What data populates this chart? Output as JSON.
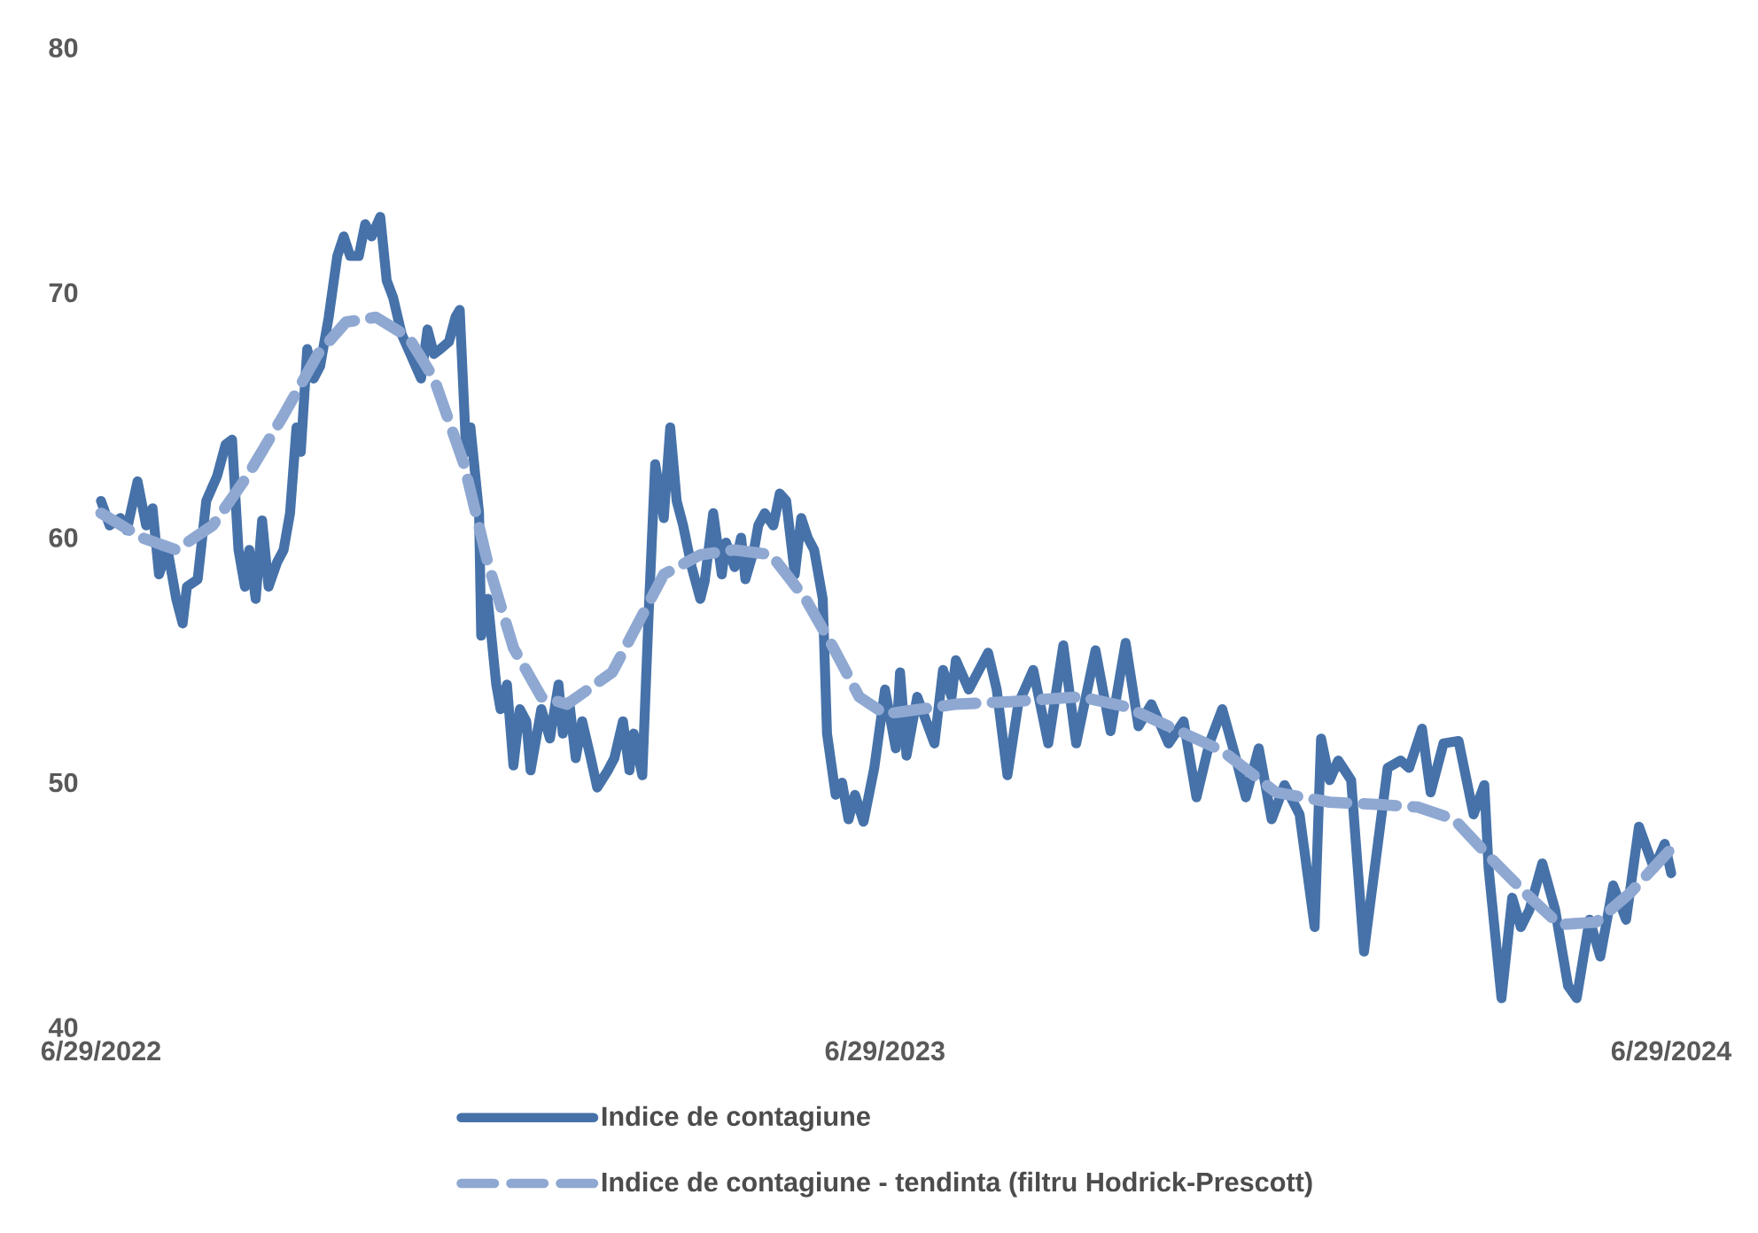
{
  "chart_data": {
    "type": "line",
    "xlim": [
      "2022-06-29",
      "2024-06-29"
    ],
    "ylim": [
      40,
      80
    ],
    "xticks": [
      {
        "value": "2022-06-29",
        "label": "6/29/2022"
      },
      {
        "value": "2023-06-29",
        "label": "6/29/2023"
      },
      {
        "value": "2024-06-29",
        "label": "6/29/2024"
      }
    ],
    "yticks": [
      40,
      50,
      60,
      70,
      80
    ],
    "grid": false,
    "legend": "bottom",
    "marker": "none",
    "series": [
      {
        "name": "Indice de contagiune",
        "color": "#4672a9",
        "line_style": "solid",
        "x": [
          "2022-06-29",
          "2022-07-03",
          "2022-07-08",
          "2022-07-11",
          "2022-07-16",
          "2022-07-20",
          "2022-07-23",
          "2022-07-26",
          "2022-07-30",
          "2022-08-03",
          "2022-08-06",
          "2022-08-08",
          "2022-08-13",
          "2022-08-17",
          "2022-08-22",
          "2022-08-26",
          "2022-08-29",
          "2022-09-01",
          "2022-09-04",
          "2022-09-06",
          "2022-09-09",
          "2022-09-12",
          "2022-09-15",
          "2022-09-19",
          "2022-09-22",
          "2022-09-25",
          "2022-09-28",
          "2022-09-30",
          "2022-10-03",
          "2022-10-06",
          "2022-10-09",
          "2022-10-13",
          "2022-10-17",
          "2022-10-20",
          "2022-10-23",
          "2022-10-27",
          "2022-10-30",
          "2022-11-02",
          "2022-11-06",
          "2022-11-09",
          "2022-11-12",
          "2022-11-16",
          "2022-11-20",
          "2022-11-25",
          "2022-11-28",
          "2022-12-01",
          "2022-12-04",
          "2022-12-08",
          "2022-12-11",
          "2022-12-13",
          "2022-12-16",
          "2022-12-18",
          "2022-12-22",
          "2022-12-23",
          "2022-12-26",
          "2022-12-30",
          "2023-01-01",
          "2023-01-04",
          "2023-01-07",
          "2023-01-10",
          "2023-01-13",
          "2023-01-15",
          "2023-01-20",
          "2023-01-24",
          "2023-01-28",
          "2023-01-30",
          "2023-02-02",
          "2023-02-05",
          "2023-02-08",
          "2023-02-12",
          "2023-02-15",
          "2023-02-20",
          "2023-02-23",
          "2023-02-27",
          "2023-03-02",
          "2023-03-04",
          "2023-03-08",
          "2023-03-11",
          "2023-03-14",
          "2023-03-18",
          "2023-03-21",
          "2023-03-24",
          "2023-03-27",
          "2023-03-31",
          "2023-04-04",
          "2023-04-06",
          "2023-04-10",
          "2023-04-14",
          "2023-04-16",
          "2023-04-20",
          "2023-04-23",
          "2023-04-25",
          "2023-04-29",
          "2023-05-01",
          "2023-05-04",
          "2023-05-08",
          "2023-05-11",
          "2023-05-14",
          "2023-05-18",
          "2023-05-21",
          "2023-05-24",
          "2023-05-27",
          "2023-05-31",
          "2023-06-02",
          "2023-06-06",
          "2023-06-09",
          "2023-06-12",
          "2023-06-15",
          "2023-06-19",
          "2023-06-24",
          "2023-06-29",
          "2023-07-04",
          "2023-07-06",
          "2023-07-09",
          "2023-07-14",
          "2023-07-22",
          "2023-07-26",
          "2023-07-30",
          "2023-08-01",
          "2023-08-07",
          "2023-08-16",
          "2023-08-20",
          "2023-08-25",
          "2023-08-30",
          "2023-09-06",
          "2023-09-13",
          "2023-09-20",
          "2023-09-26",
          "2023-10-05",
          "2023-10-12",
          "2023-10-19",
          "2023-10-25",
          "2023-10-31",
          "2023-11-08",
          "2023-11-15",
          "2023-11-21",
          "2023-11-27",
          "2023-12-03",
          "2023-12-09",
          "2023-12-14",
          "2023-12-20",
          "2023-12-26",
          "2024-01-01",
          "2024-01-08",
          "2024-01-15",
          "2024-01-18",
          "2024-01-22",
          "2024-01-26",
          "2024-02-01",
          "2024-02-07",
          "2024-02-13",
          "2024-02-18",
          "2024-02-24",
          "2024-02-28",
          "2024-03-05",
          "2024-03-09",
          "2024-03-15",
          "2024-03-22",
          "2024-03-29",
          "2024-04-03",
          "2024-04-05",
          "2024-04-11",
          "2024-04-16",
          "2024-04-20",
          "2024-04-24",
          "2024-04-30",
          "2024-05-06",
          "2024-05-12",
          "2024-05-16",
          "2024-05-22",
          "2024-05-27",
          "2024-06-02",
          "2024-06-08",
          "2024-06-14",
          "2024-06-21",
          "2024-06-26",
          "2024-06-29"
        ],
        "values": [
          61.5,
          60.5,
          60.8,
          60.3,
          62.3,
          60.5,
          61.2,
          58.5,
          59.5,
          57.5,
          56.5,
          58,
          58.3,
          61.5,
          62.5,
          63.8,
          64,
          59.5,
          58,
          59.5,
          57.5,
          60.7,
          58,
          59,
          59.5,
          61,
          64.5,
          63.5,
          67.7,
          66.5,
          67,
          69,
          71.5,
          72.3,
          71.5,
          71.5,
          72.8,
          72.3,
          73.1,
          70.5,
          69.8,
          68.3,
          67.5,
          66.5,
          68.5,
          67.5,
          67.7,
          68,
          69,
          69.3,
          63.5,
          64.5,
          61,
          56,
          57.5,
          54,
          53,
          54,
          50.7,
          53,
          52.5,
          50.5,
          53,
          51.8,
          54,
          52,
          53.3,
          51,
          52.5,
          51,
          49.8,
          50.5,
          51,
          52.5,
          50.5,
          52,
          50.3,
          57,
          63,
          60.8,
          64.5,
          61.5,
          60.5,
          58.8,
          57.5,
          58.2,
          61,
          58.5,
          59.8,
          58.8,
          60,
          58.3,
          59.5,
          60.5,
          61,
          60.5,
          61.8,
          61.5,
          58.5,
          60.8,
          60,
          59.5,
          57.5,
          52,
          49.5,
          50,
          48.5,
          49.5,
          48.4,
          50.6,
          53.8,
          51.4,
          54.5,
          51.1,
          53.5,
          51.6,
          54.6,
          53.5,
          55,
          53.8,
          55.3,
          53.8,
          50.3,
          53.2,
          54.6,
          51.6,
          55.6,
          51.6,
          55.4,
          52.1,
          55.7,
          52.3,
          53.2,
          51.6,
          52.5,
          49.4,
          51.6,
          53,
          51.1,
          49.4,
          51.4,
          48.5,
          49.9,
          48.7,
          44.1,
          51.8,
          50.1,
          50.9,
          50.1,
          43.1,
          47.2,
          50.6,
          50.9,
          50.6,
          52.2,
          49.6,
          51.6,
          51.7,
          48.7,
          49.9,
          46.5,
          41.2,
          45.3,
          44.1,
          44.8,
          46.7,
          44.8,
          41.7,
          41.2,
          44.4,
          42.9,
          45.8,
          44.4,
          48.2,
          46.5,
          47.5,
          46.3
        ]
      },
      {
        "name": "Indice de contagiune - tendinta (filtru Hodrick-Prescott)",
        "color": "#8fa8d2",
        "line_style": "dashed",
        "x": [
          "2022-06-29",
          "2022-07-18",
          "2022-08-03",
          "2022-08-20",
          "2022-09-05",
          "2022-09-22",
          "2022-10-08",
          "2022-10-21",
          "2022-11-04",
          "2022-11-19",
          "2022-12-01",
          "2022-12-15",
          "2022-12-26",
          "2023-01-07",
          "2023-01-20",
          "2023-02-01",
          "2023-02-22",
          "2023-03-06",
          "2023-03-18",
          "2023-04-04",
          "2023-04-20",
          "2023-05-07",
          "2023-05-23",
          "2023-06-05",
          "2023-06-17",
          "2023-06-29",
          "2023-08-01",
          "2023-08-26",
          "2023-09-28",
          "2023-10-19",
          "2023-11-08",
          "2023-12-03",
          "2023-12-28",
          "2024-01-22",
          "2024-02-15",
          "2024-03-03",
          "2024-03-20",
          "2024-04-05",
          "2024-04-22",
          "2024-05-08",
          "2024-05-25",
          "2024-06-10",
          "2024-06-29"
        ],
        "values": [
          61,
          60,
          59.5,
          60.5,
          62.5,
          65,
          67.5,
          68.8,
          69,
          68.2,
          66.5,
          63,
          59,
          55.5,
          53.5,
          53.2,
          54.5,
          56.5,
          58.5,
          59.3,
          59.5,
          59.3,
          57.5,
          55.5,
          53.5,
          52.8,
          53.2,
          53.3,
          53.5,
          53.1,
          52.3,
          51.3,
          49.6,
          49.2,
          49.1,
          49.0,
          48.5,
          47.0,
          45.5,
          44.2,
          44.3,
          45.5,
          47.3
        ]
      }
    ]
  }
}
